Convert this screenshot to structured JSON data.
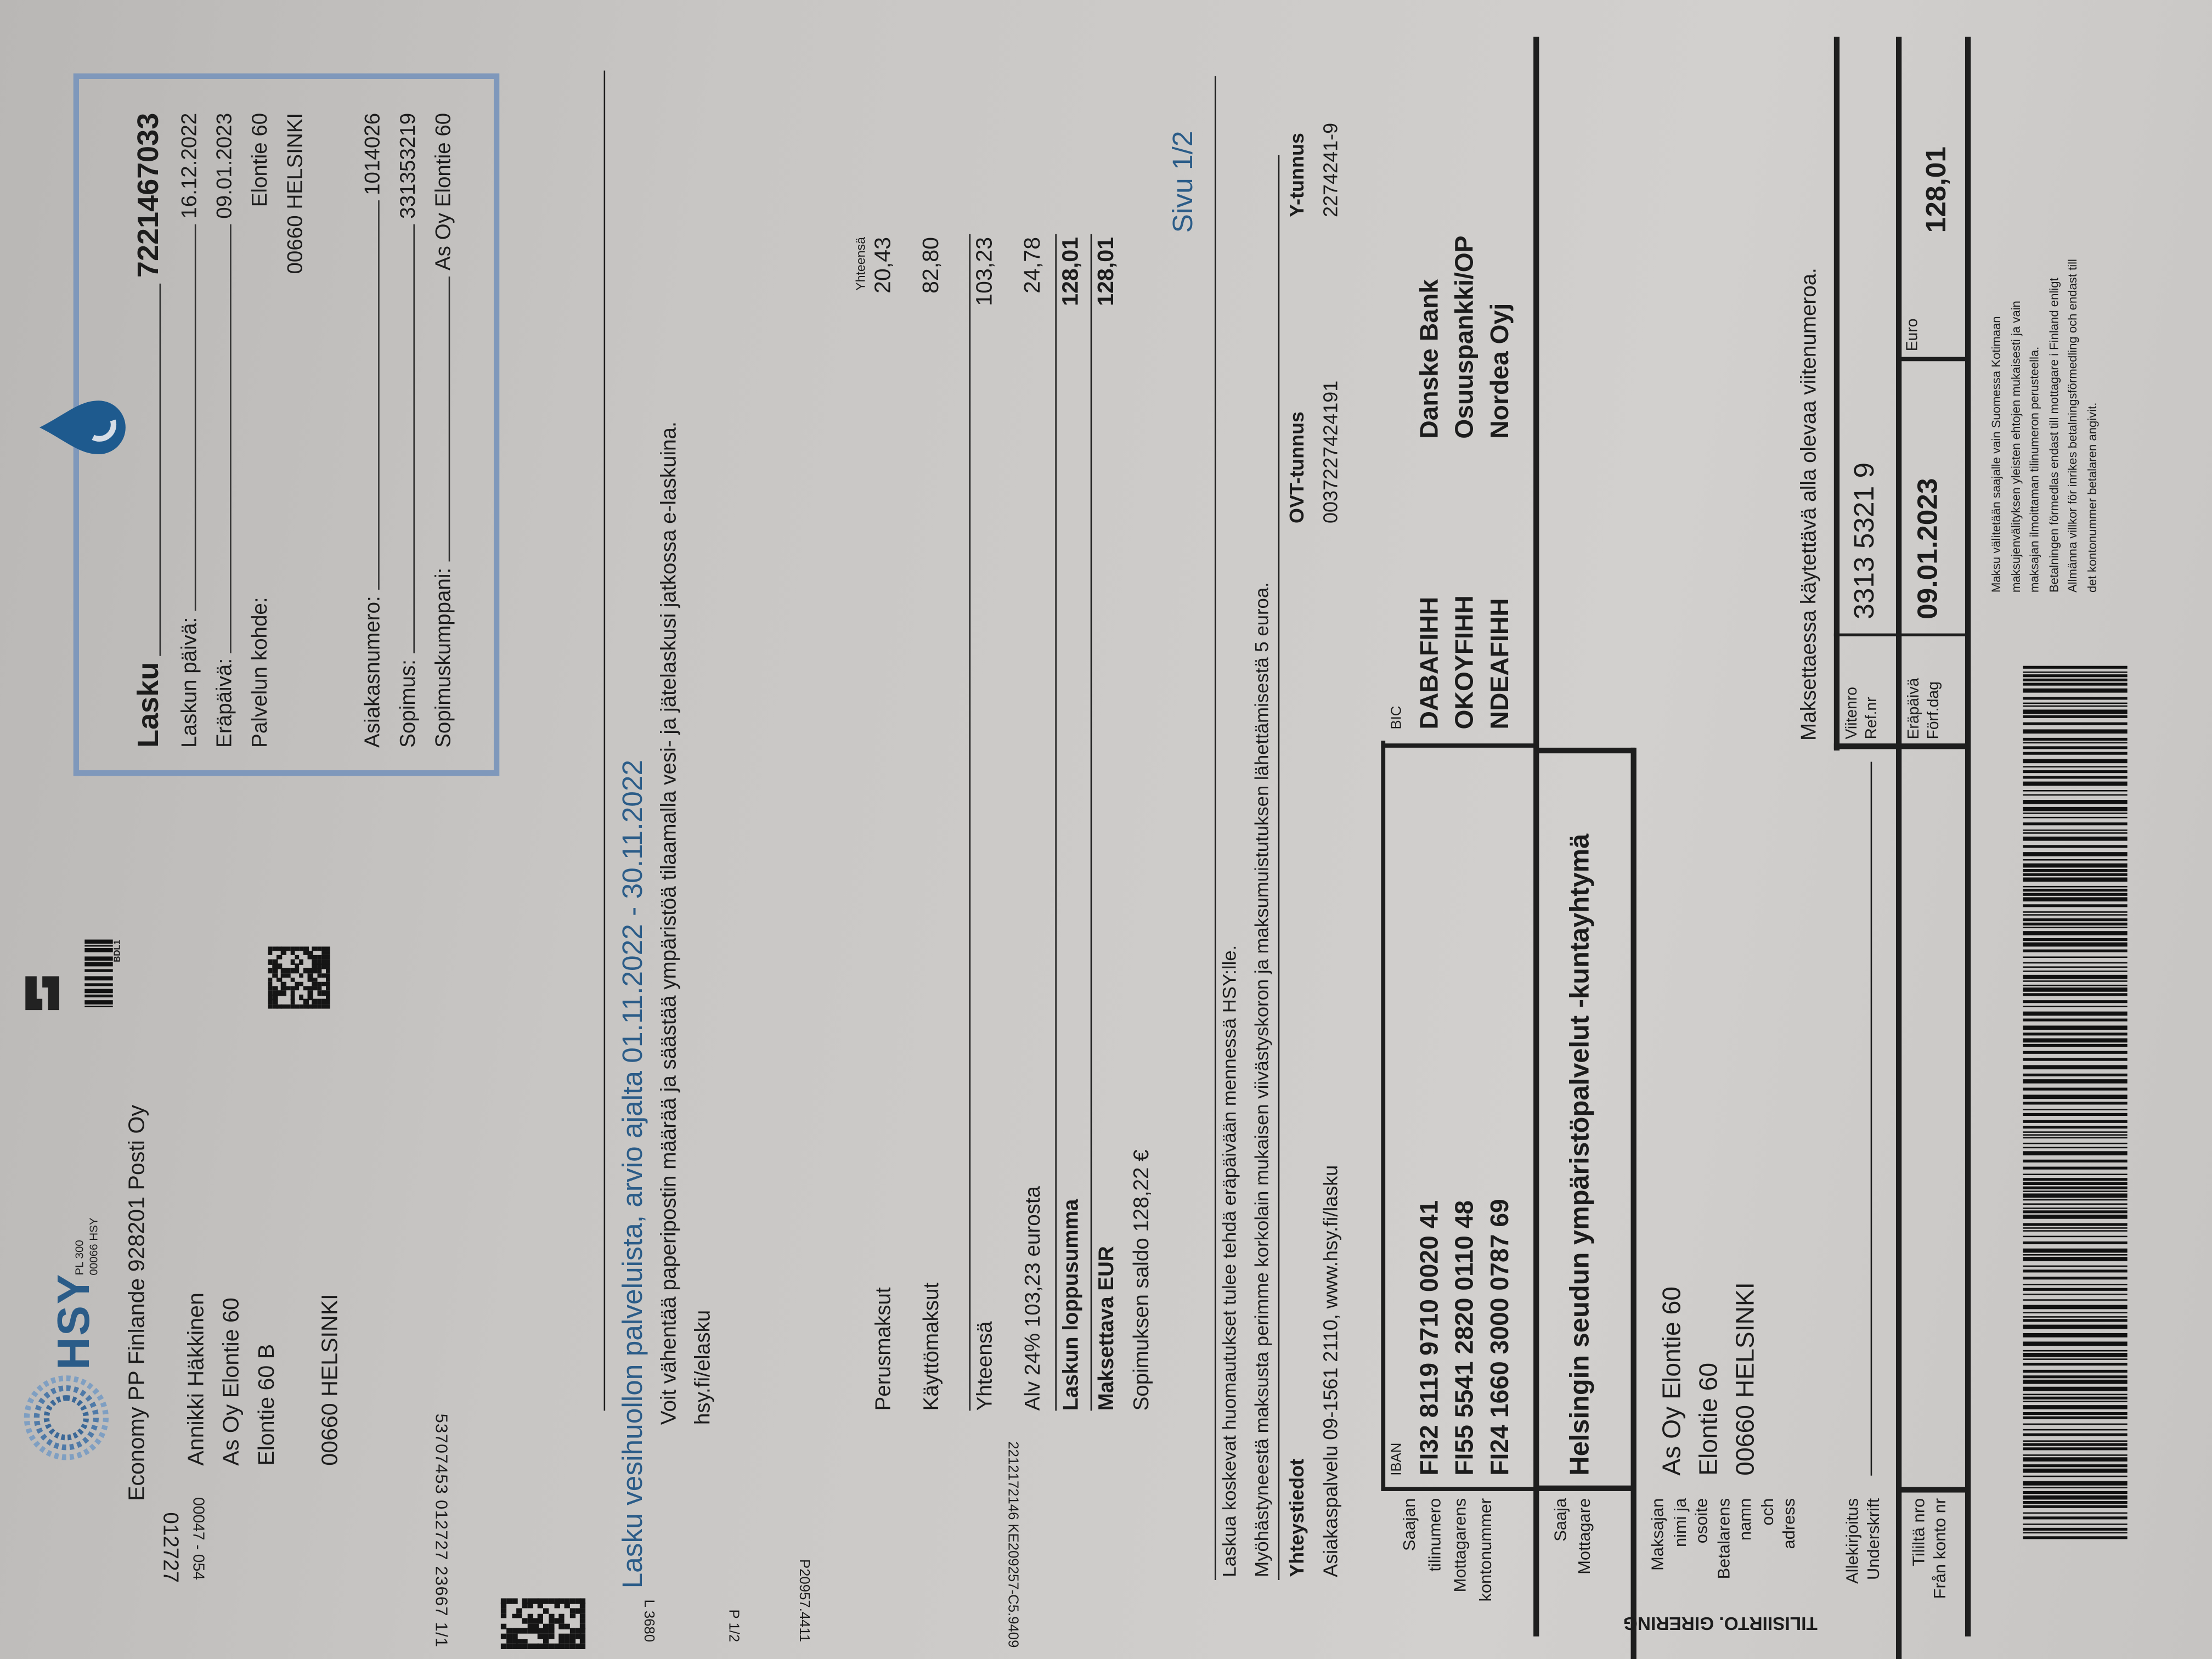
{
  "sender": {
    "logo_text": "HSY",
    "po_box": "PL 300",
    "postcode": "00066 HSY",
    "postage": "Economy PP Finlande 928201 Posti Oy",
    "barcode_label": "BDL1",
    "brand_color": "#2b5c88"
  },
  "recipient": {
    "name": "Annikki Häkkinen",
    "line1": "As Oy Elontie 60",
    "line2": "Elontie 60 B",
    "city": "00660 HELSINKI"
  },
  "print_codes": {
    "route": "00047 - 054",
    "sequence": "012727",
    "batch": "53707453 012727 23667 1/1",
    "l_code": "L 3680",
    "page_code": "P 1/2",
    "job": "P20957.4411",
    "ref": "2212172146 KE209257-C5.9409"
  },
  "invoice_box": {
    "title": "Lasku",
    "number": "7221467033",
    "rows": [
      {
        "label": "Laskun päivä:",
        "value": "16.12.2022"
      },
      {
        "label": "Eräpäivä:",
        "value": "09.01.2023"
      },
      {
        "label": "Palvelun kohde:",
        "value": "Elontie 60"
      },
      {
        "label": "",
        "value": "00660 HELSINKI"
      },
      {
        "label": "Asiakasnumero:",
        "value": "1014026"
      },
      {
        "label": "Sopimus:",
        "value": "331353219"
      },
      {
        "label": "Sopimuskumppani:",
        "value": "As Oy Elontie 60"
      }
    ]
  },
  "main": {
    "title": "Lasku vesihuollon palveluista, arvio ajalta 01.11.2022 - 30.11.2022",
    "einvoice_note": "Voit vähentää paperipostin määrää ja säästää ympäristöä tilaamalla vesi- ja jätelaskusi jatkossa e-laskuina.",
    "einvoice_link": "hsy.fi/elasku",
    "page": "Sivu 1/2"
  },
  "charges": {
    "column_header": "Yhteensä",
    "rows": [
      {
        "label": "Perusmaksut",
        "value": "20,43"
      },
      {
        "label": "Käyttömaksut",
        "value": "82,80"
      },
      {
        "label": "Yhteensä",
        "value": "103,23"
      },
      {
        "label": "Alv 24% 103,23 eurosta",
        "value": "24,78"
      },
      {
        "label": "Laskun loppusumma",
        "value": "128,01"
      },
      {
        "label": "Maksettava EUR",
        "value": "128,01"
      }
    ],
    "contract_balance": "Sopimuksen saldo 128,22 €"
  },
  "notices": {
    "complaints": "Laskua koskevat huomautukset tulee tehdä eräpäivään mennessä HSY:lle.",
    "late_fee": "Myöhästyneestä maksusta perimme korkolain mukaisen viivästyskoron ja maksumuistutuksen lähettämisestä 5 euroa."
  },
  "contact": {
    "heading": "Yhteystiedot",
    "service": "Asiakaspalvelu 09-1561 2110, www.hsy.fi/lasku",
    "ovt_label": "OVT-tunnus",
    "ovt_value": "0037227424191",
    "y_label": "Y-tunnus",
    "y_value": "2274241-9"
  },
  "slip": {
    "form_title": "TILISIIRTO. GIRERING",
    "account_label": [
      "Saajan",
      "tilinumero",
      "Mottagarens",
      "kontonummer"
    ],
    "iban_header": "IBAN",
    "bic_header": "BIC",
    "accounts": [
      {
        "iban": "FI32 8119 9710 0020 41",
        "bic": "DABAFIHH",
        "bank": "Danske Bank"
      },
      {
        "iban": "FI55 5541 2820 0110 48",
        "bic": "OKOYFIHH",
        "bank": "Osuuspankki/OP"
      },
      {
        "iban": "FI24 1660 3000 0787 69",
        "bic": "NDEAFIHH",
        "bank": "Nordea Oyj"
      }
    ],
    "payee_label": [
      "Saaja",
      "Mottagare"
    ],
    "payee": "Helsingin seudun ympäristöpalvelut -kuntayhtymä",
    "payer_label": [
      "Maksajan",
      "nimi ja",
      "osoite",
      "Betalarens",
      "namn",
      "och",
      "adress"
    ],
    "payer": [
      "As Oy Elontie 60",
      "Elontie 60",
      "00660 HELSINKI"
    ],
    "reference_note": "Maksettaessa käytettävä alla olevaa viitenumeroa.",
    "signature_label": [
      "Allekirjoitus",
      "Underskrift"
    ],
    "reference_label": [
      "Viitenro",
      "Ref.nr"
    ],
    "reference": "3313 5321 9",
    "from_account_label": [
      "Tililtä nro",
      "Från konto nr"
    ],
    "due_label": [
      "Eräpäivä",
      "Förf.dag"
    ],
    "due_date": "09.01.2023",
    "euro_label": "Euro",
    "amount": "128,01",
    "fine_print": [
      "Maksu välitetään saajalle vain Suomessa Kotimaan",
      "maksujenvälityksen yleisten ehtojen mukaisesti ja vain",
      "maksajan ilmoittaman tilinumeron perusteella.",
      "Betalningen förmedlas endast till mottagare i Finland enligt",
      "Allmänna villkor för inrikes betalningsförmedling och endast till",
      "det kontonummer betalaren angivit."
    ]
  }
}
